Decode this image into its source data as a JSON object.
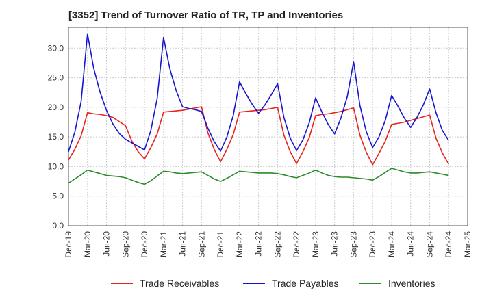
{
  "chart_data": {
    "type": "line",
    "title": "[3352]  Trend of Turnover Ratio of TR, TP and Inventories",
    "xlabel": "",
    "ylabel": "",
    "ylim": [
      0,
      33.5
    ],
    "yticks": [
      "0.0",
      "5.0",
      "10.0",
      "15.0",
      "20.0",
      "25.0",
      "30.0"
    ],
    "ytick_values": [
      0,
      5,
      10,
      15,
      20,
      25,
      30
    ],
    "xticks": [
      "Dec-19",
      "Mar-20",
      "Jun-20",
      "Sep-20",
      "Dec-20",
      "Mar-21",
      "Jun-21",
      "Sep-21",
      "Dec-21",
      "Mar-22",
      "Jun-22",
      "Sep-22",
      "Dec-22",
      "Mar-23",
      "Jun-23",
      "Sep-23",
      "Dec-23",
      "Mar-24",
      "Jun-24",
      "Sep-24",
      "Dec-24",
      "Mar-25"
    ],
    "grid": true,
    "legend_position": "bottom",
    "x_months": [
      "Dec-19",
      "Jan-20",
      "Feb-20",
      "Mar-20",
      "Apr-20",
      "May-20",
      "Jun-20",
      "Jul-20",
      "Aug-20",
      "Sep-20",
      "Oct-20",
      "Nov-20",
      "Dec-20",
      "Jan-21",
      "Feb-21",
      "Mar-21",
      "Apr-21",
      "May-21",
      "Jun-21",
      "Jul-21",
      "Aug-21",
      "Sep-21",
      "Oct-21",
      "Nov-21",
      "Dec-21",
      "Jan-22",
      "Feb-22",
      "Mar-22",
      "Apr-22",
      "May-22",
      "Jun-22",
      "Jul-22",
      "Aug-22",
      "Sep-22",
      "Oct-22",
      "Nov-22",
      "Dec-22",
      "Jan-23",
      "Feb-23",
      "Mar-23",
      "Apr-23",
      "May-23",
      "Jun-23",
      "Jul-23",
      "Aug-23",
      "Sep-23",
      "Oct-23",
      "Nov-23",
      "Dec-23",
      "Jan-24",
      "Feb-24",
      "Mar-24",
      "Apr-24",
      "May-24",
      "Jun-24",
      "Jul-24",
      "Aug-24",
      "Sep-24",
      "Oct-24",
      "Nov-24",
      "Dec-24"
    ],
    "series": [
      {
        "name": "Trade Receivables",
        "color": "#e8231c",
        "values": [
          11.1,
          12.9,
          15.2,
          19.1,
          18.9,
          18.8,
          18.6,
          18.3,
          17.6,
          16.9,
          14.3,
          12.5,
          11.3,
          13.2,
          15.5,
          19.2,
          19.3,
          19.4,
          19.5,
          19.7,
          19.9,
          20.1,
          15.7,
          12.9,
          10.8,
          12.9,
          15.4,
          19.2,
          19.3,
          19.4,
          19.5,
          19.6,
          19.8,
          20.0,
          15.3,
          12.5,
          10.5,
          12.5,
          14.9,
          18.6,
          18.8,
          18.9,
          19.1,
          19.3,
          19.6,
          19.9,
          15.3,
          12.4,
          10.3,
          12.2,
          14.3,
          17.1,
          17.3,
          17.5,
          17.8,
          18.1,
          18.4,
          18.7,
          14.8,
          12.3,
          10.4
        ]
      },
      {
        "name": "Trade Payables",
        "color": "#1515d1",
        "values": [
          12.5,
          15.8,
          21.0,
          32.4,
          26.5,
          22.5,
          19.5,
          17.2,
          15.6,
          14.6,
          14.0,
          13.4,
          12.8,
          16.1,
          21.5,
          31.8,
          26.5,
          22.8,
          20.1,
          19.8,
          19.6,
          19.3,
          16.5,
          14.2,
          12.6,
          15.0,
          18.6,
          24.3,
          22.3,
          20.5,
          19.0,
          20.4,
          22.1,
          24.0,
          18.3,
          14.8,
          12.7,
          14.5,
          17.4,
          21.6,
          19.2,
          17.1,
          15.5,
          18.2,
          21.8,
          27.7,
          20.3,
          15.9,
          13.2,
          15.0,
          17.8,
          22.0,
          20.2,
          18.2,
          16.6,
          18.3,
          20.4,
          23.1,
          19.1,
          16.1,
          14.4
        ]
      },
      {
        "name": "Inventories",
        "color": "#2b8a2b",
        "values": [
          7.2,
          7.9,
          8.6,
          9.4,
          9.1,
          8.8,
          8.5,
          8.4,
          8.3,
          8.1,
          7.7,
          7.3,
          7.0,
          7.6,
          8.4,
          9.2,
          9.1,
          8.9,
          8.8,
          8.9,
          9.0,
          9.1,
          8.5,
          7.9,
          7.5,
          8.0,
          8.6,
          9.2,
          9.1,
          9.0,
          8.9,
          8.9,
          8.9,
          8.8,
          8.6,
          8.3,
          8.1,
          8.5,
          8.9,
          9.4,
          8.9,
          8.5,
          8.3,
          8.2,
          8.2,
          8.1,
          8.0,
          7.9,
          7.7,
          8.3,
          9.0,
          9.7,
          9.4,
          9.1,
          8.9,
          8.9,
          9.0,
          9.1,
          8.9,
          8.7,
          8.5
        ]
      }
    ]
  }
}
